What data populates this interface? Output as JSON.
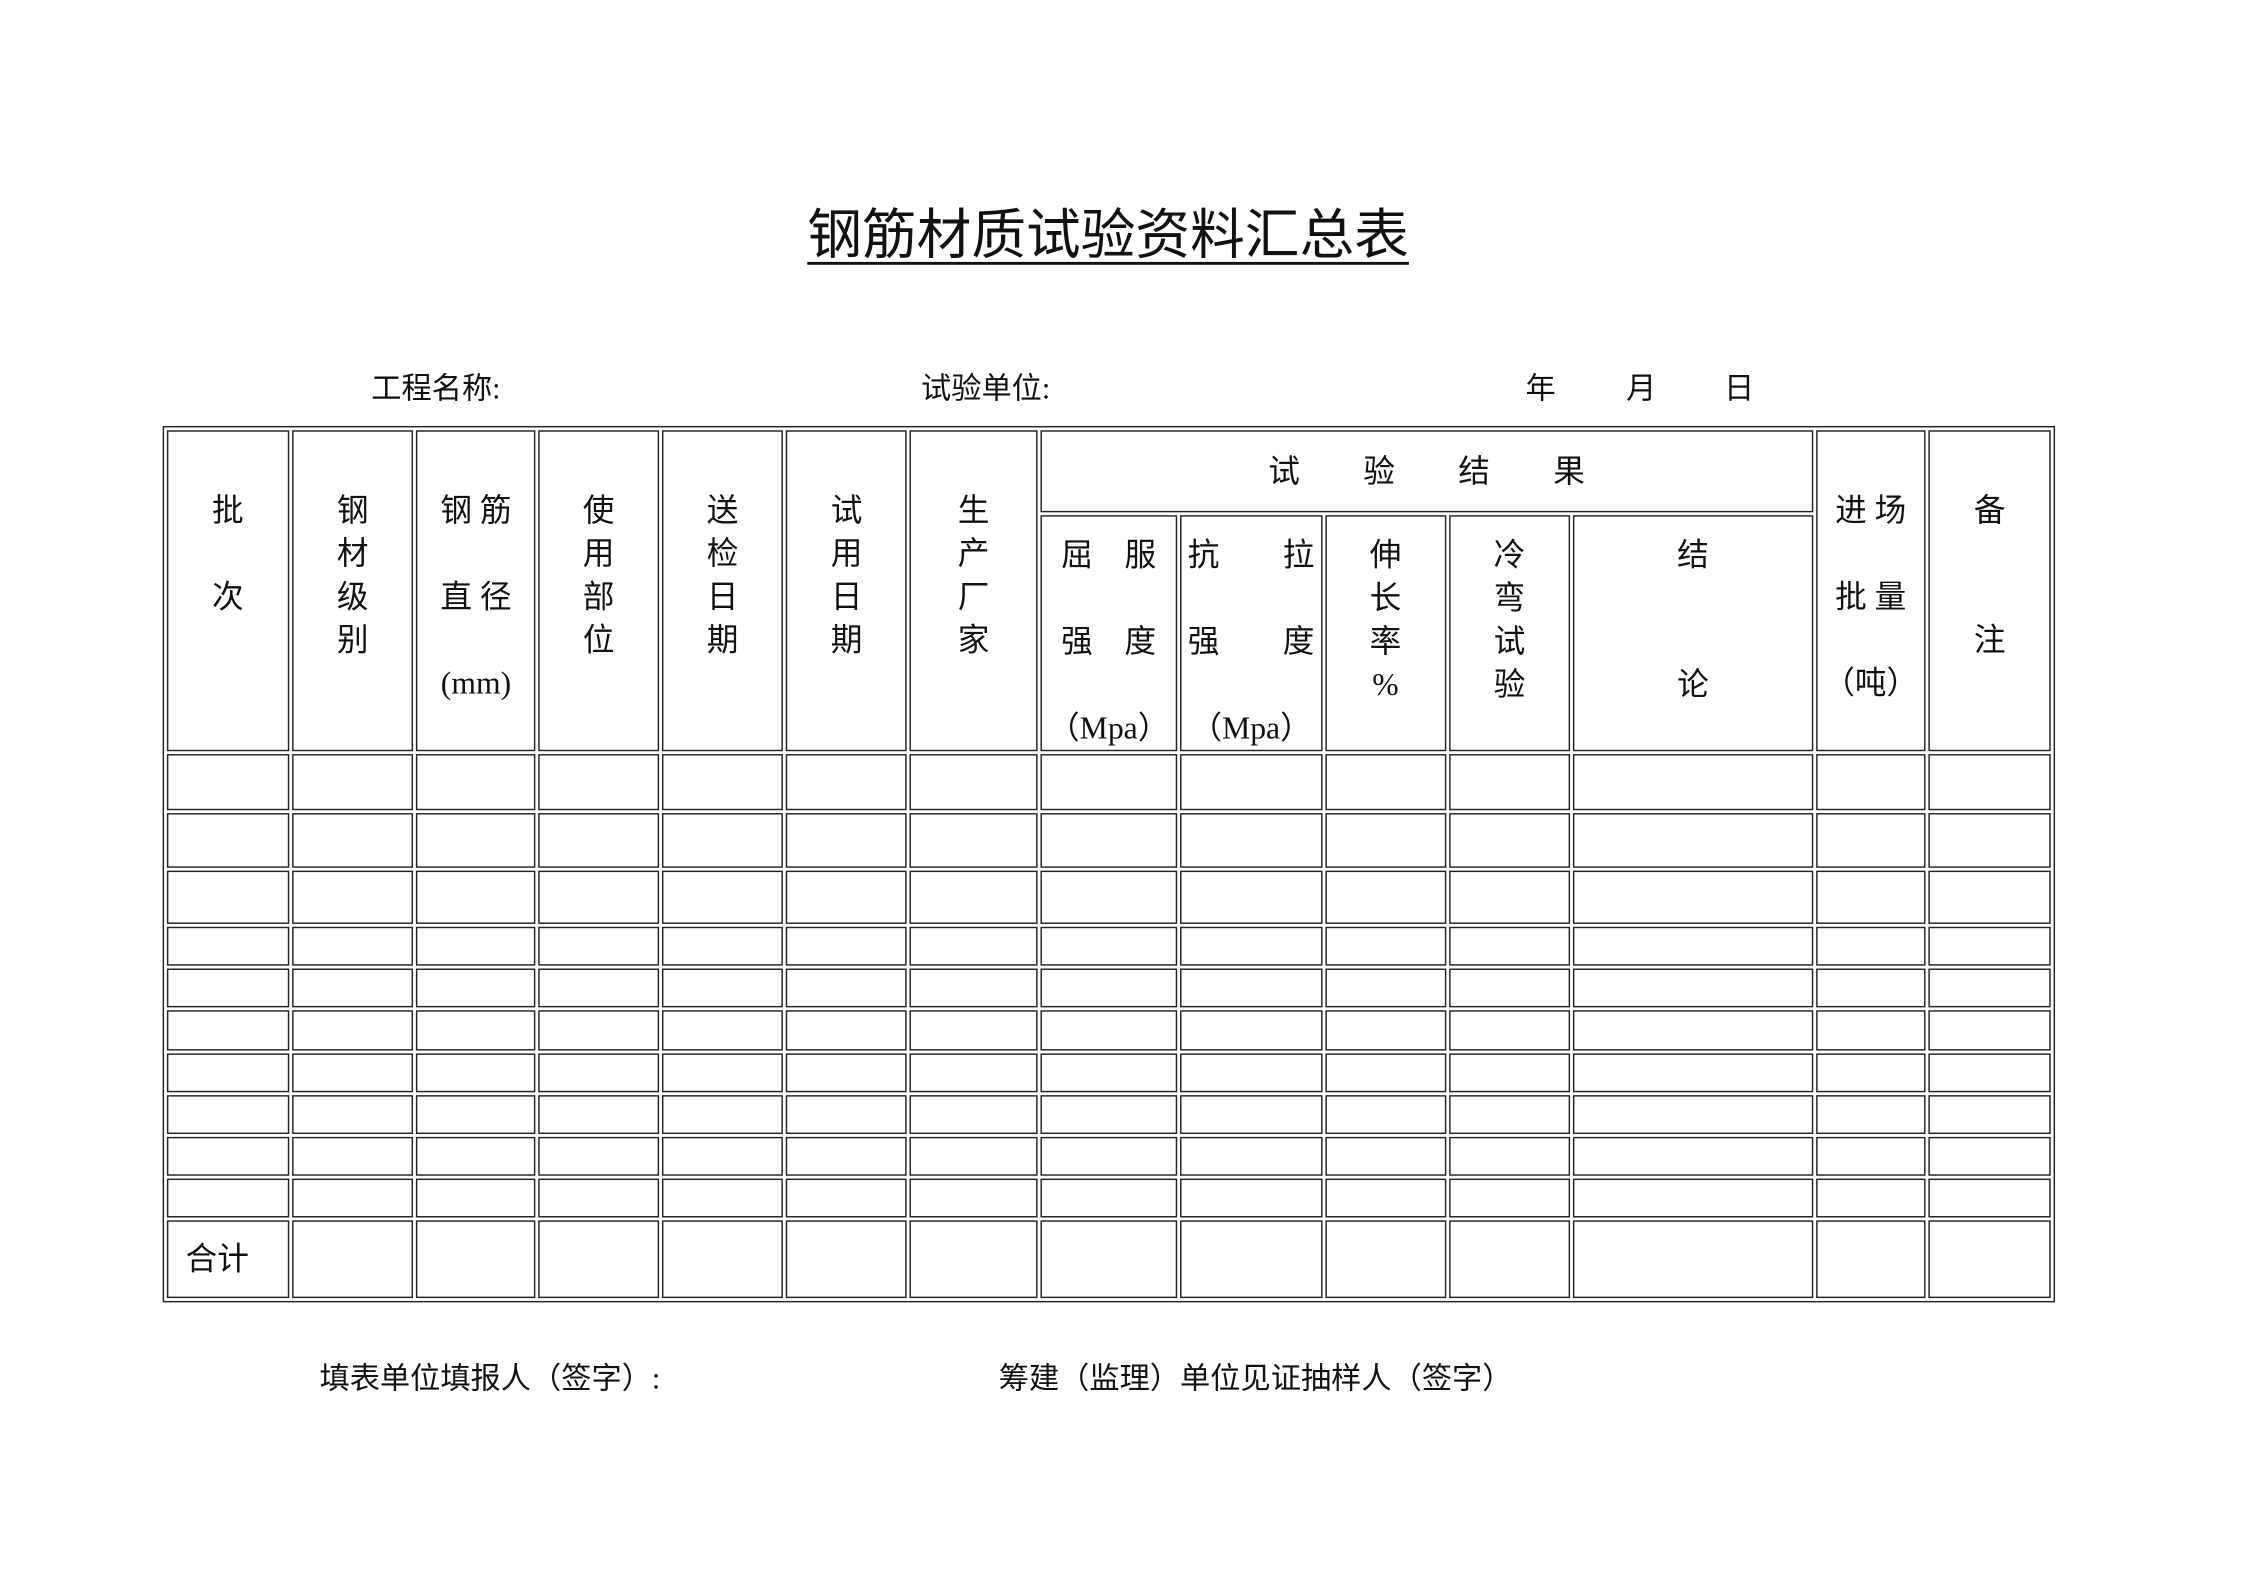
{
  "title": "钢筋材质试验资料汇总表",
  "info": {
    "project_name_label": "工程名称:",
    "test_unit_label": "试验单位:",
    "year_label": "年",
    "month_label": "月",
    "day_label": "日"
  },
  "table": {
    "headers": {
      "batch": "批\n\n次",
      "steel_grade": "钢\n材\n级\n别",
      "diameter": "钢 筋\n\n直 径\n\n(mm)",
      "usage_location": "使\n用\n部\n位",
      "submit_date": "送\n检\n日\n期",
      "use_date": "试\n用\n日\n期",
      "manufacturer": "生\n产\n厂\n家",
      "test_results": "试　　验　　结　　果",
      "yield_strength": "屈　服\n\n强　度\n\n（Mpa）",
      "tensile_strength": "抗　　拉\n\n强　　度\n\n（Mpa）",
      "elongation": "伸\n长\n率\n%",
      "cold_bend": "冷\n弯\n试\n验",
      "conclusion": "结\n\n\n论",
      "batch_quantity": "进 场\n\n批 量\n\n（吨）",
      "remarks": "备\n\n\n注"
    },
    "empty_rows": 10,
    "total_label": "合计"
  },
  "footer": {
    "filler_label": "填表单位填报人（签字）:",
    "supervisor_label": "筹建（监理）单位见证抽样人（签字）"
  }
}
